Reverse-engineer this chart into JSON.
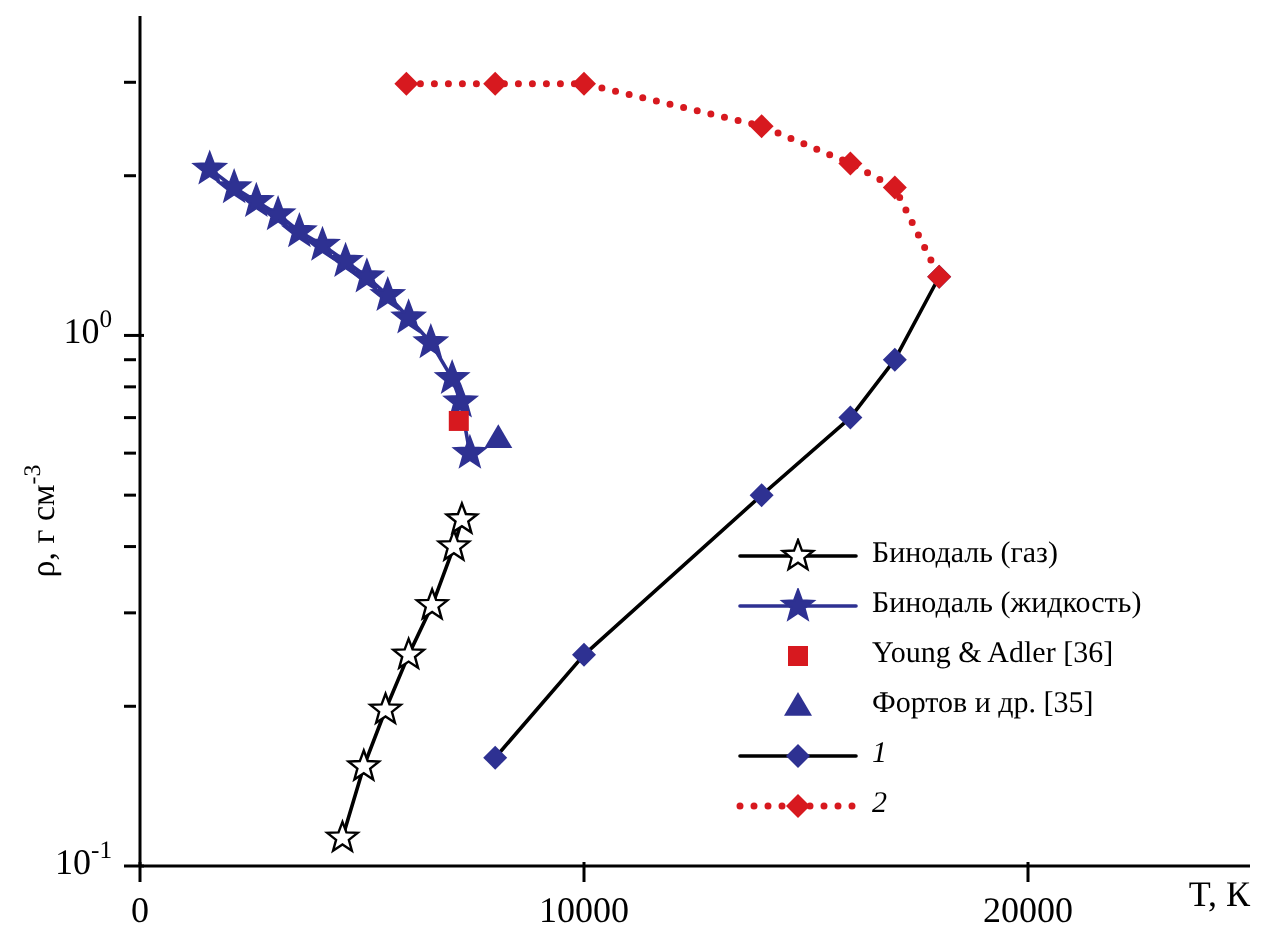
{
  "chart_data": {
    "type": "line",
    "xlabel": "T, К",
    "ylabel": "ρ, г см$^{-3}$",
    "log": "y",
    "legend": "bottom right",
    "xlim": [
      0,
      25000
    ],
    "xticks": [
      0,
      10000,
      20000
    ],
    "ylim": [
      0.1,
      4
    ],
    "yticks": [
      {
        "value": 0.1,
        "label": "10$^{-1}$"
      },
      {
        "value": 0.2,
        "label": null
      },
      {
        "value": 0.3,
        "label": null
      },
      {
        "value": 0.4,
        "label": null
      },
      {
        "value": 0.5,
        "label": null
      },
      {
        "value": 0.6,
        "label": null
      },
      {
        "value": 0.7,
        "label": null
      },
      {
        "value": 0.8,
        "label": null
      },
      {
        "value": 0.9,
        "label": null
      },
      {
        "value": 1,
        "label": "10$^{0}$"
      },
      {
        "value": 2,
        "label": null
      },
      {
        "value": 3,
        "label": null
      }
    ],
    "series": [
      {
        "name": "Бинодаль (газ)",
        "type": "line",
        "marker": "star",
        "color": "#000000",
        "x": [
          4560,
          5040,
          5530,
          6050,
          6580,
          7070,
          7250
        ],
        "values": [
          0.113,
          0.154,
          0.197,
          0.25,
          0.31,
          0.4,
          0.45
        ]
      },
      {
        "name": "Бинодаль (жидкость)",
        "type": "line",
        "marker": "star",
        "color": "#2e3192",
        "x": [
          1570,
          2120,
          2620,
          3110,
          3590,
          4110,
          4630,
          5110,
          5580,
          6050,
          6550,
          7030,
          7220,
          7430
        ],
        "values": [
          2.06,
          1.9,
          1.79,
          1.69,
          1.57,
          1.48,
          1.38,
          1.29,
          1.19,
          1.08,
          0.97,
          0.83,
          0.75,
          0.6
        ]
      },
      {
        "name": "Young & Adler [36]",
        "type": "scatter",
        "marker": "square",
        "color": "#d7191f",
        "x": [
          7180
        ],
        "values": [
          0.69
        ]
      },
      {
        "name": "Фортов и др. [35]",
        "type": "scatter",
        "marker": "triangle",
        "color": "#2e3192",
        "x": [
          8070
        ],
        "values": [
          0.64
        ]
      },
      {
        "name": "1",
        "type": "line",
        "marker": "diamond",
        "color": "#000000",
        "colors": [
          "#2e3192",
          "#2e3192",
          "#2e3192",
          "#2e3192",
          "#2e3192",
          "#2e3192"
        ],
        "x": [
          8000,
          10000,
          14000,
          16000,
          17000,
          18000
        ],
        "values": [
          0.16,
          0.25,
          0.5,
          0.7,
          0.9,
          1.29
        ]
      },
      {
        "name": "2",
        "type": "line",
        "marker": "diamond",
        "line_style": "dotted",
        "color": "#d7191f",
        "x": [
          6000,
          8000,
          10000,
          14000,
          16000,
          17000,
          18000
        ],
        "values": [
          2.98,
          2.98,
          2.98,
          2.48,
          2.11,
          1.9,
          1.29
        ]
      }
    ]
  }
}
